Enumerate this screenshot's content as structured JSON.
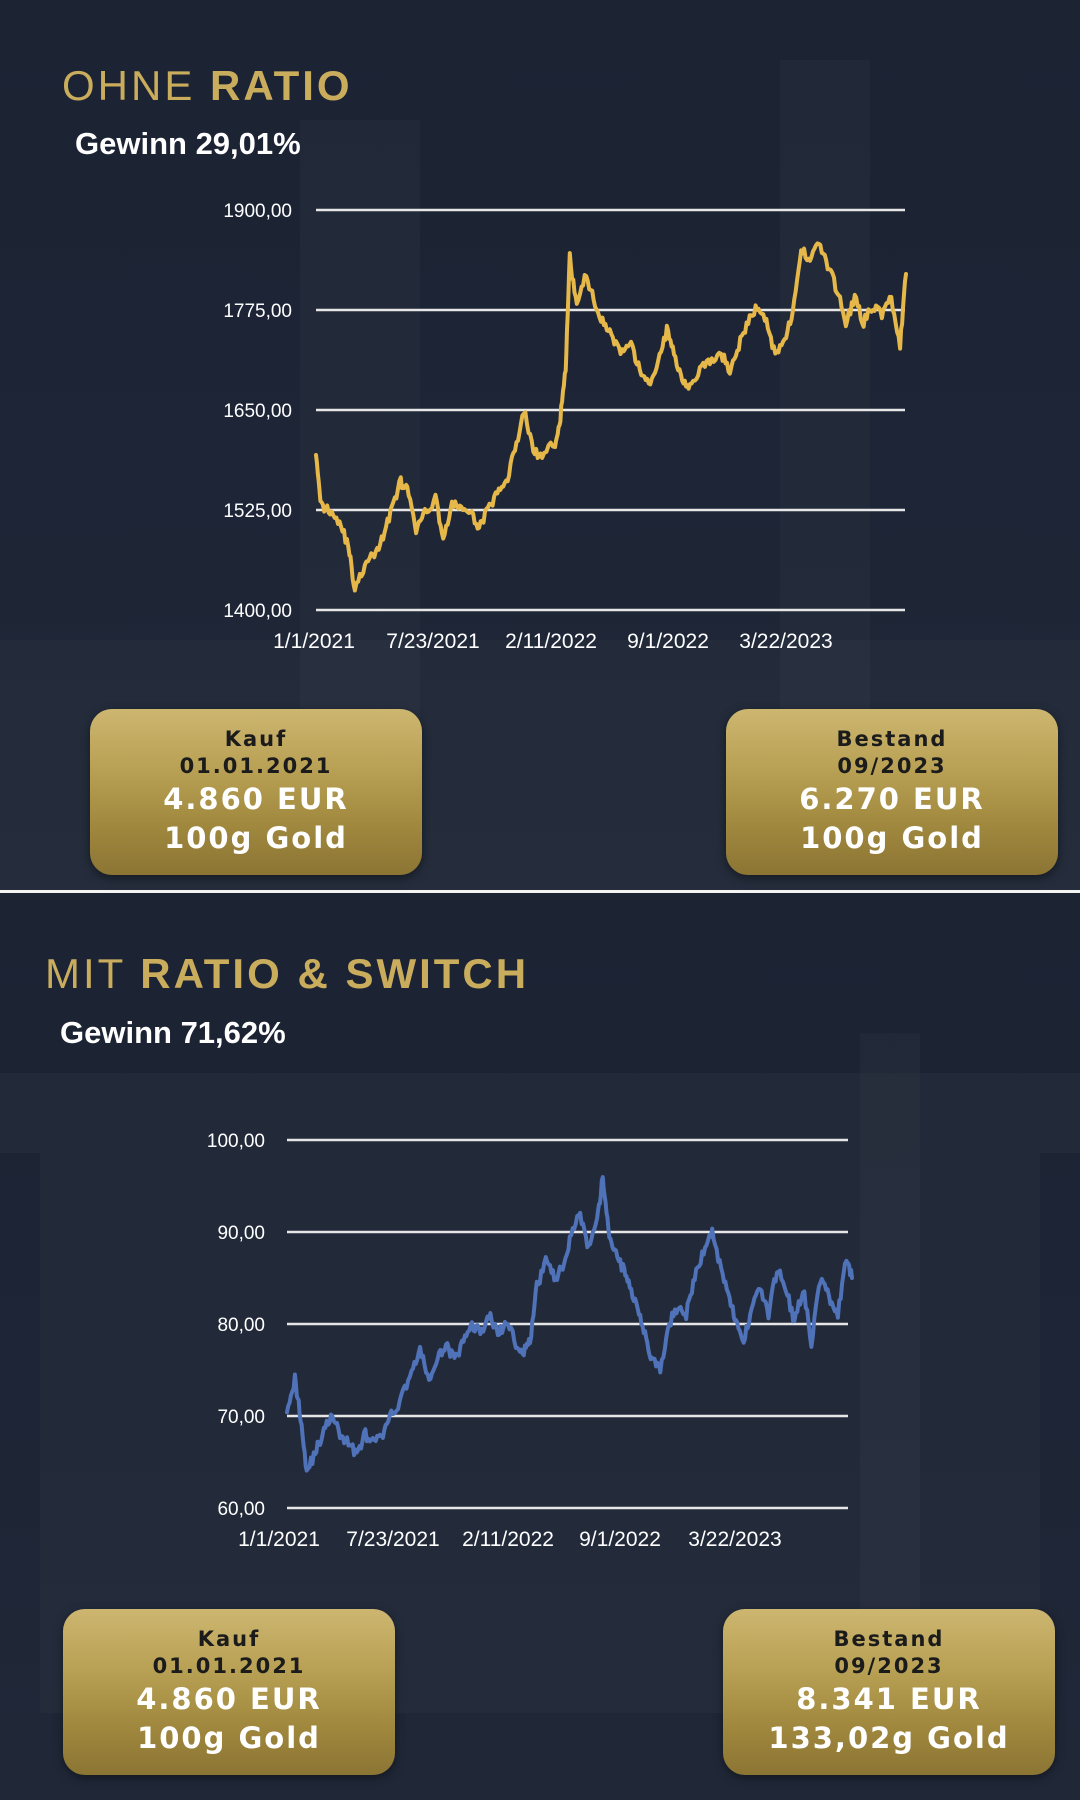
{
  "panels": [
    {
      "heading_light": "OHNE",
      "heading_bold": "RATIO",
      "subtitle": "Gewinn 29,01%",
      "chart_data": {
        "type": "line",
        "ylim": [
          1400,
          1900
        ],
        "yticks": [
          "1900,00",
          "1775,00",
          "1650,00",
          "1525,00",
          "1400,00"
        ],
        "ytick_values": [
          1900,
          1775,
          1650,
          1525,
          1400
        ],
        "xticks": [
          "1/1/2021",
          "7/23/2021",
          "2/11/2022",
          "9/1/2022",
          "3/22/2023"
        ],
        "x_start": "2021-01-01",
        "x_end": "2023-09-30",
        "grid": true,
        "line_color": "#e6b84a",
        "series": [
          {
            "dates": [
              "2021-01-01",
              "2021-01-10",
              "2021-01-25",
              "2021-02-10",
              "2021-02-25",
              "2021-03-08",
              "2021-03-25",
              "2021-04-10",
              "2021-04-25",
              "2021-05-10",
              "2021-05-25",
              "2021-06-05",
              "2021-06-20",
              "2021-07-05",
              "2021-07-23",
              "2021-08-05",
              "2021-08-20",
              "2021-09-05",
              "2021-09-20",
              "2021-10-05",
              "2021-10-20",
              "2021-11-05",
              "2021-11-20",
              "2021-12-05",
              "2021-12-20",
              "2022-01-05",
              "2022-01-20",
              "2022-02-11",
              "2022-02-20",
              "2022-03-01",
              "2022-03-08",
              "2022-03-20",
              "2022-04-05",
              "2022-04-20",
              "2022-05-05",
              "2022-05-20",
              "2022-06-05",
              "2022-06-20",
              "2022-07-05",
              "2022-07-20",
              "2022-08-05",
              "2022-08-20",
              "2022-09-01",
              "2022-09-15",
              "2022-09-28",
              "2022-10-15",
              "2022-11-01",
              "2022-11-20",
              "2022-12-05",
              "2022-12-20",
              "2023-01-05",
              "2023-01-20",
              "2023-02-05",
              "2023-02-20",
              "2023-03-08",
              "2023-03-22",
              "2023-04-05",
              "2023-04-20",
              "2023-05-05",
              "2023-05-20",
              "2023-06-05",
              "2023-06-20",
              "2023-07-05",
              "2023-07-20",
              "2023-08-05",
              "2023-08-20",
              "2023-09-05",
              "2023-09-20",
              "2023-09-30"
            ],
            "values": [
              1600,
              1530,
              1525,
              1510,
              1480,
              1425,
              1455,
              1470,
              1490,
              1530,
              1560,
              1550,
              1500,
              1520,
              1540,
              1490,
              1530,
              1530,
              1520,
              1505,
              1525,
              1545,
              1560,
              1600,
              1650,
              1600,
              1590,
              1610,
              1640,
              1700,
              1840,
              1780,
              1820,
              1780,
              1760,
              1740,
              1720,
              1730,
              1700,
              1680,
              1710,
              1750,
              1720,
              1690,
              1680,
              1700,
              1710,
              1720,
              1700,
              1730,
              1760,
              1780,
              1760,
              1720,
              1740,
              1770,
              1850,
              1840,
              1860,
              1830,
              1800,
              1760,
              1790,
              1760,
              1780,
              1770,
              1790,
              1730,
              1820
            ]
          }
        ]
      },
      "card_left": {
        "line1": "Kauf",
        "line2": "01.01.2021",
        "line3": "4.860 EUR",
        "line4": "100g Gold"
      },
      "card_right": {
        "line1": "Bestand",
        "line2": "09/2023",
        "line3": "6.270 EUR",
        "line4": "100g Gold"
      }
    },
    {
      "heading_light": "MIT",
      "heading_bold": "RATIO & SWITCH",
      "subtitle": "Gewinn 71,62%",
      "chart_data": {
        "type": "line",
        "ylim": [
          60,
          100
        ],
        "yticks": [
          "100,00",
          "90,00",
          "80,00",
          "70,00",
          "60,00"
        ],
        "ytick_values": [
          100,
          90,
          80,
          70,
          60
        ],
        "xticks": [
          "1/1/2021",
          "7/23/2021",
          "2/11/2022",
          "9/1/2022",
          "3/22/2023"
        ],
        "x_start": "2021-01-01",
        "x_end": "2023-09-30",
        "grid": true,
        "line_color": "#4f72b8",
        "series": [
          {
            "dates": [
              "2021-01-01",
              "2021-01-15",
              "2021-01-25",
              "2021-02-05",
              "2021-02-20",
              "2021-03-05",
              "2021-03-20",
              "2021-04-05",
              "2021-04-20",
              "2021-05-05",
              "2021-05-20",
              "2021-06-05",
              "2021-06-20",
              "2021-07-05",
              "2021-07-23",
              "2021-08-10",
              "2021-08-25",
              "2021-09-10",
              "2021-09-25",
              "2021-10-10",
              "2021-10-25",
              "2021-11-10",
              "2021-11-25",
              "2021-12-10",
              "2021-12-25",
              "2022-01-10",
              "2022-01-25",
              "2022-02-11",
              "2022-02-25",
              "2022-03-08",
              "2022-03-20",
              "2022-04-05",
              "2022-04-20",
              "2022-05-05",
              "2022-05-20",
              "2022-06-05",
              "2022-06-20",
              "2022-07-05",
              "2022-07-15",
              "2022-07-25",
              "2022-08-05",
              "2022-08-20",
              "2022-09-01",
              "2022-09-15",
              "2022-09-28",
              "2022-10-10",
              "2022-10-25",
              "2022-11-10",
              "2022-11-25",
              "2022-12-10",
              "2022-12-25",
              "2023-01-10",
              "2023-01-25",
              "2023-02-10",
              "2023-02-25",
              "2023-03-08",
              "2023-03-22",
              "2023-04-05",
              "2023-04-20",
              "2023-05-05",
              "2023-05-20",
              "2023-06-05",
              "2023-06-20",
              "2023-07-05",
              "2023-07-20",
              "2023-08-05",
              "2023-08-20",
              "2023-09-05",
              "2023-09-20",
              "2023-09-30"
            ],
            "values": [
              71,
              74,
              70,
              64,
              66,
              68,
              70,
              68,
              67,
              66,
              68,
              67,
              68,
              70,
              72,
              75,
              77,
              74,
              76,
              78,
              76,
              78,
              80,
              79,
              81,
              79,
              80,
              78,
              77,
              78,
              84,
              87,
              85,
              86,
              90,
              92,
              88,
              91,
              96,
              90,
              88,
              86,
              84,
              82,
              79,
              76,
              75,
              80,
              82,
              81,
              85,
              88,
              90,
              86,
              83,
              80,
              78,
              82,
              84,
              81,
              86,
              84,
              80,
              84,
              78,
              85,
              83,
              81,
              87,
              85
            ]
          }
        ]
      },
      "card_left": {
        "line1": "Kauf",
        "line2": "01.01.2021",
        "line3": "4.860 EUR",
        "line4": "100g Gold"
      },
      "card_right": {
        "line1": "Bestand",
        "line2": "09/2023",
        "line3": "8.341 EUR",
        "line4": "133,02g Gold"
      }
    }
  ]
}
